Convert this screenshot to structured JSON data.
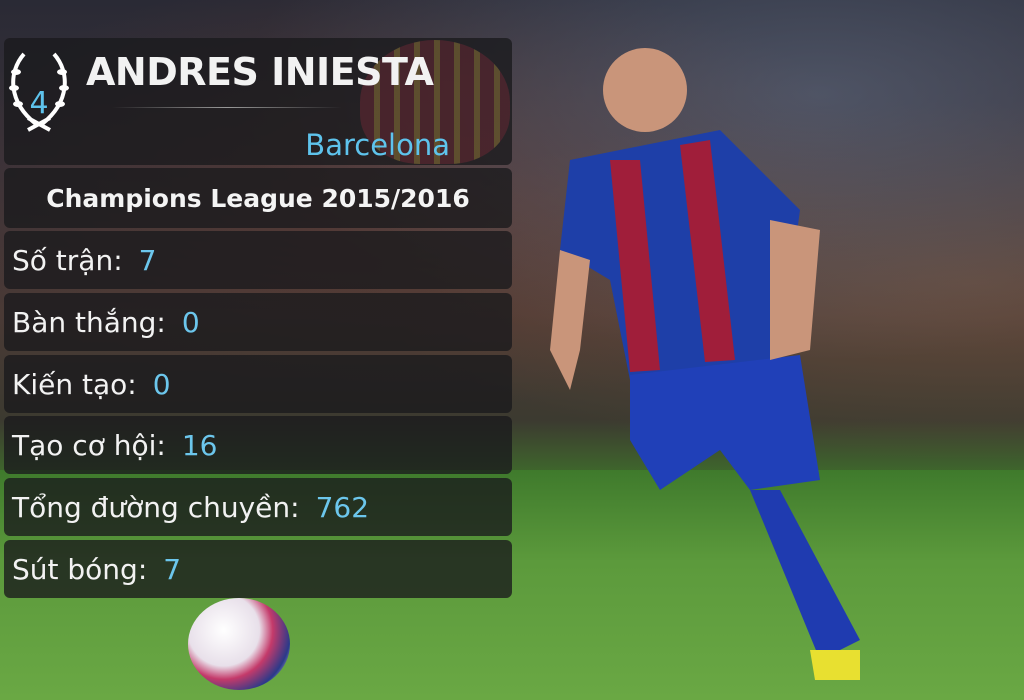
{
  "player": {
    "rank": "4",
    "name": "ANDRES INIESTA",
    "club": "Barcelona"
  },
  "competition": "Champions League 2015/2016",
  "stats": [
    {
      "label": "Số trận:",
      "value": "7"
    },
    {
      "label": "Bàn thắng:",
      "value": "0"
    },
    {
      "label": "Kiến tạo:",
      "value": "0"
    },
    {
      "label": "Tạo cơ hội:",
      "value": "16"
    },
    {
      "label": "Tổng đường chuyền:",
      "value": "762"
    },
    {
      "label": "Sút bóng:",
      "value": "7"
    }
  ],
  "colors": {
    "accent": "#5ec3ec",
    "panel": "#19191c"
  }
}
